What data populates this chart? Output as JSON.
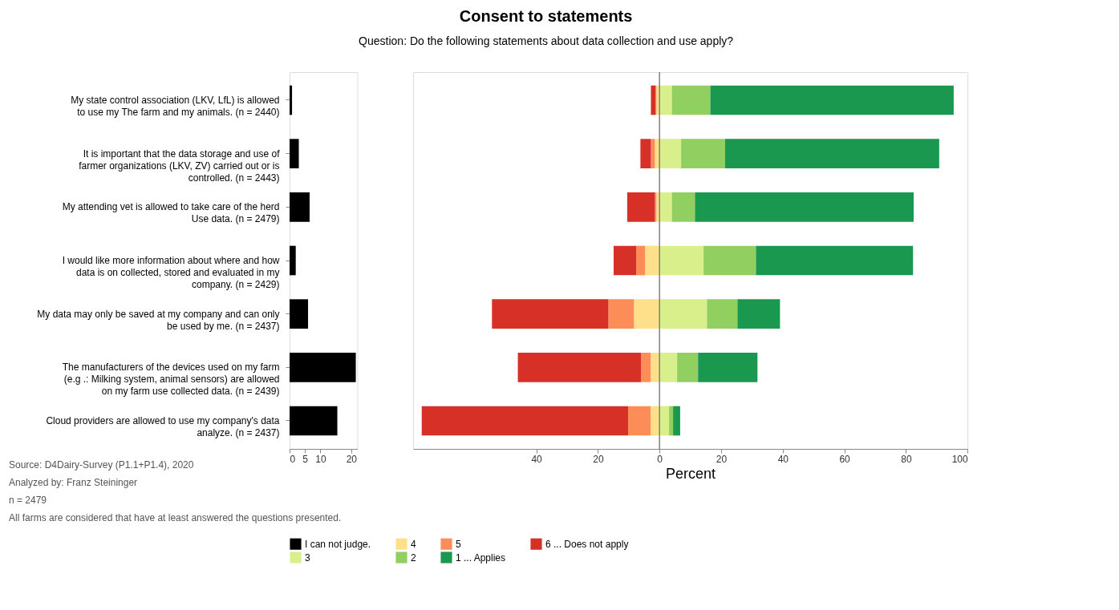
{
  "chart_data": [
    {
      "type": "bar",
      "orientation": "horizontal",
      "categories": [
        "My state control association (LKV, LfL) is allowed to use my The farm and my animals. (n = 2440)",
        "It is important that the data storage and use of farmer organizations (LKV, ZV) carried out or is controlled. (n = 2443)",
        "My attending vet is allowed to take care of the herd Use data. (n = 2479)",
        "I would like more information about where and how data is on collected, stored and evaluated in my company. (n = 2429)",
        "My data may only be saved at my company and can only be used by me. (n = 2437)",
        "The manufacturers of the devices used on my farm (e.g .: Milking system, animal sensors) are allowed on my farm use collected data. (n = 2439)",
        "Cloud providers are allowed to use my company's data analyze. (n = 2437)"
      ],
      "xlim": [
        0,
        22
      ],
      "xticks": [
        0,
        5,
        10,
        20
      ],
      "legend": "bottom",
      "series": [
        {
          "name": "I can not judge.",
          "color": "#000000",
          "values": [
            0.8,
            3,
            6.5,
            2,
            6,
            21.5,
            15.5
          ]
        }
      ],
      "annotations": [
        "Source: D4Dairy-Survey (P1.1+P1.4), 2020",
        "Analyzed by: Franz Steininger",
        "n = 2479",
        "All farms are considered that have at least answered the questions presented."
      ]
    },
    {
      "type": "bar",
      "orientation": "horizontal",
      "stacked": true,
      "tick_labels": "x",
      "xlabel": "Percent",
      "title": "Consent to statements",
      "subtitle": "Question: Do the following statements about data collection and use apply?",
      "categories": [
        null,
        null,
        null,
        null,
        null,
        null,
        null
      ],
      "xlim": [
        -80,
        100
      ],
      "xticks": [
        {
          "value": -40,
          "label": "40"
        },
        {
          "value": -20,
          "label": "20"
        },
        0,
        20,
        40,
        60,
        80,
        100
      ],
      "ref_lines": [
        {
          "axis": "x",
          "value": 0,
          "color": "#808080"
        }
      ],
      "legend": "bottom",
      "series": [
        {
          "name": "4",
          "color": "#fee08b",
          "values": [
            -1,
            -1.5,
            -1,
            -4.7,
            -8.3,
            -2.9,
            -2.9
          ]
        },
        {
          "name": "5",
          "color": "#fc8d59",
          "values": [
            -0.3,
            -1.3,
            -0.5,
            -2.9,
            -8.3,
            -3.1,
            -7.3
          ]
        },
        {
          "name": "6 ... Does not apply",
          "color": "#d73027",
          "values": [
            -1.5,
            -3.4,
            -9,
            -7.3,
            -37.8,
            -40,
            -67
          ]
        },
        {
          "name": "3",
          "color": "#d9ef8b",
          "values": [
            4,
            7,
            4,
            14.3,
            15.4,
            5.7,
            3.1
          ]
        },
        {
          "name": "2",
          "color": "#91cf60",
          "values": [
            12.5,
            14.3,
            7.5,
            17,
            9.9,
            6.8,
            1.3
          ]
        },
        {
          "name": "1 ... Applies",
          "color": "#1a9850",
          "values": [
            79,
            69.5,
            71,
            51,
            13.8,
            19.3,
            2.3
          ]
        }
      ]
    }
  ]
}
